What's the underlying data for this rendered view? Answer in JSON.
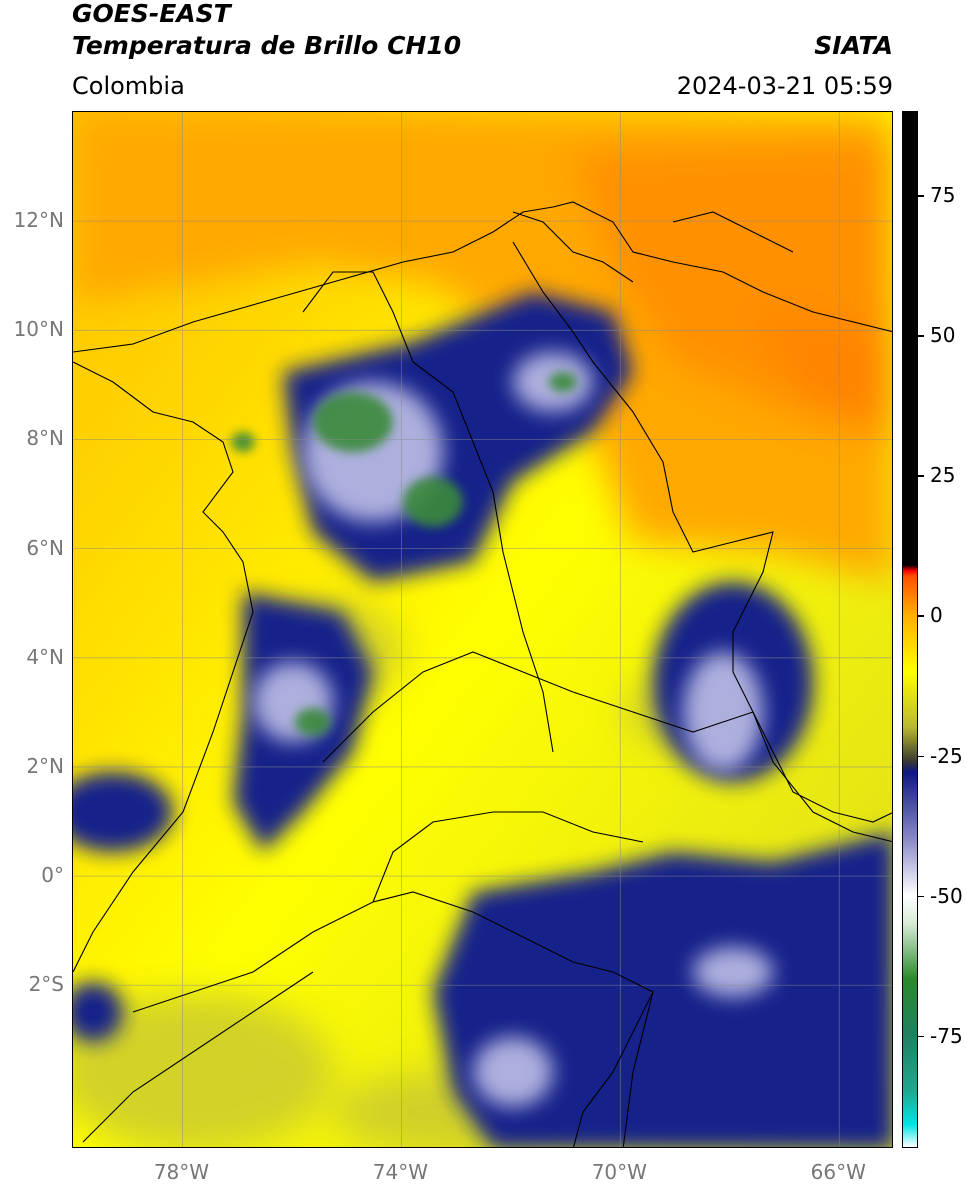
{
  "header": {
    "satellite": "GOES-EAST",
    "product": "Temperatura de Brillo CH10",
    "organization": "SIATA",
    "region": "Colombia",
    "datetime": "2024-03-21 05:59"
  },
  "map": {
    "lon_range": [
      -80,
      -65
    ],
    "lat_range": [
      -5,
      14
    ],
    "lat_ticks": [
      {
        "value": 12,
        "label": "12°N"
      },
      {
        "value": 10,
        "label": "10°N"
      },
      {
        "value": 8,
        "label": "8°N"
      },
      {
        "value": 6,
        "label": "6°N"
      },
      {
        "value": 4,
        "label": "4°N"
      },
      {
        "value": 2,
        "label": "2°N"
      },
      {
        "value": 0,
        "label": "0°"
      },
      {
        "value": -2,
        "label": "2°S"
      }
    ],
    "lon_ticks": [
      {
        "value": -78,
        "label": "78°W"
      },
      {
        "value": -74,
        "label": "74°W"
      },
      {
        "value": -70,
        "label": "70°W"
      },
      {
        "value": -66,
        "label": "66°W"
      }
    ],
    "gridlines": true
  },
  "colorbar": {
    "range": [
      -95,
      90
    ],
    "ticks": [
      {
        "value": 75,
        "label": "75"
      },
      {
        "value": 50,
        "label": "50"
      },
      {
        "value": 25,
        "label": "25"
      },
      {
        "value": 0,
        "label": "0"
      },
      {
        "value": -25,
        "label": "-25"
      },
      {
        "value": -50,
        "label": "-50"
      },
      {
        "value": -75,
        "label": "-75"
      }
    ],
    "stops": [
      {
        "value": -95,
        "color": "#ffffff"
      },
      {
        "value": -91,
        "color": "#00e5e5"
      },
      {
        "value": -85,
        "color": "#20a890"
      },
      {
        "value": -75,
        "color": "#208060"
      },
      {
        "value": -65,
        "color": "#2a8a2a"
      },
      {
        "value": -55,
        "color": "#d8ecd8"
      },
      {
        "value": -50,
        "color": "#ffffff"
      },
      {
        "value": -40,
        "color": "#8a8ac8"
      },
      {
        "value": -28,
        "color": "#101880"
      },
      {
        "value": -26,
        "color": "#3a3a30"
      },
      {
        "value": -20,
        "color": "#b8b830"
      },
      {
        "value": -10,
        "color": "#ffff00"
      },
      {
        "value": 0,
        "color": "#ffb000"
      },
      {
        "value": 7,
        "color": "#ff5000"
      },
      {
        "value": 8,
        "color": "#ff0000"
      },
      {
        "value": 9,
        "color": "#000000"
      },
      {
        "value": 90,
        "color": "#000000"
      }
    ]
  }
}
